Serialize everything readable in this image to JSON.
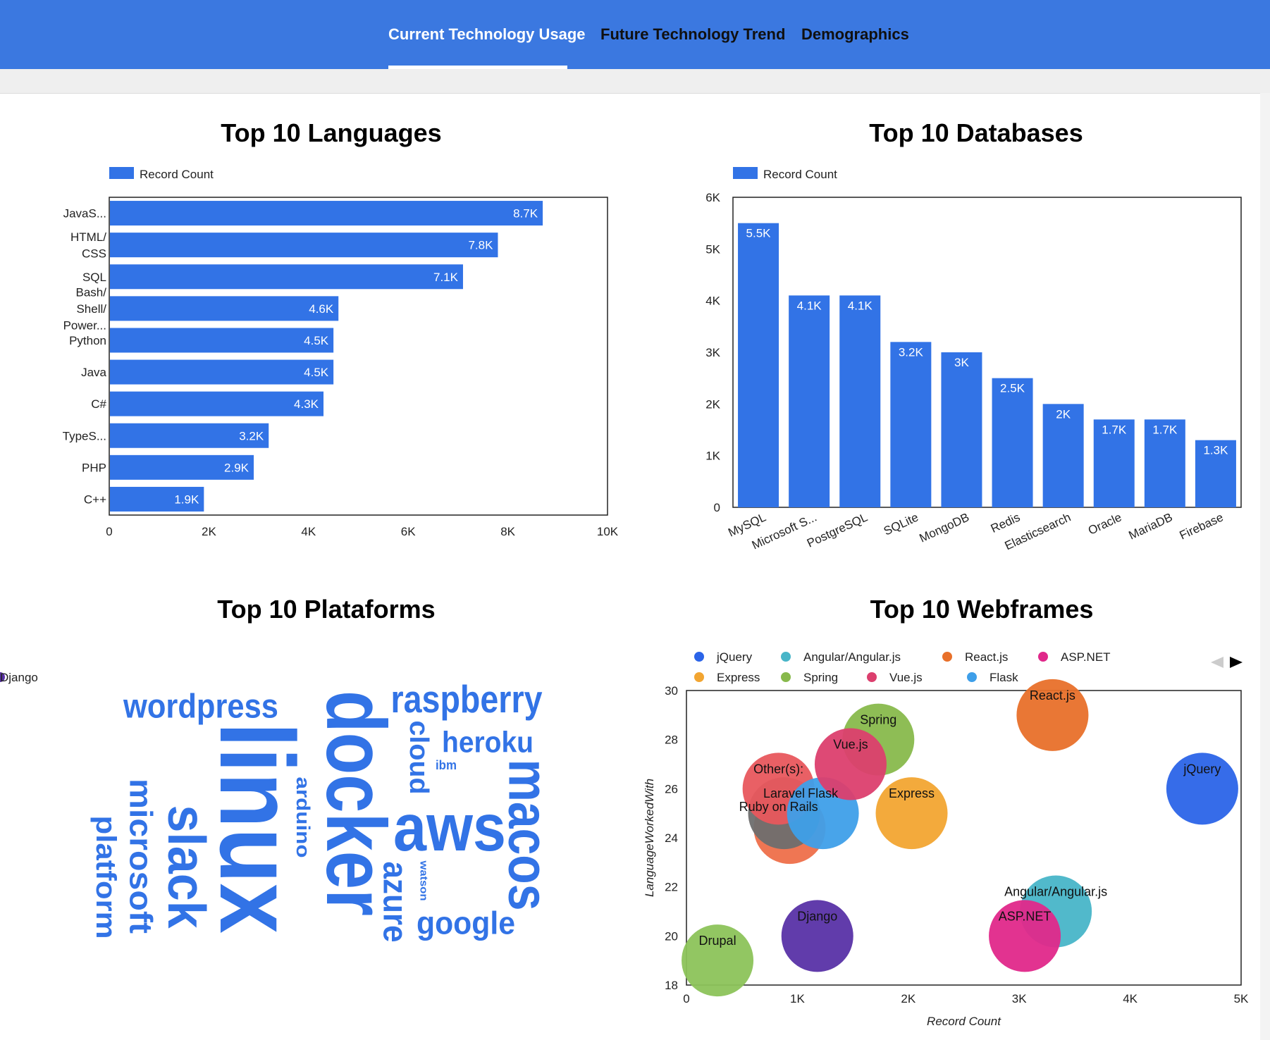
{
  "tabs": [
    {
      "label": "Current Technology Usage",
      "active": true
    },
    {
      "label": "Future Technology Trend",
      "active": false
    },
    {
      "label": "Demographics",
      "active": false
    }
  ],
  "colors": {
    "header": "#3b78e0",
    "bar": "#3273e6"
  },
  "panels": {
    "languages_title": "Top 10 Languages",
    "databases_title": "Top 10 Databases",
    "platforms_title": "Top 10 Plataforms",
    "webframes_title": "Top 10 Webframes"
  },
  "chart_data": [
    {
      "type": "bar",
      "orientation": "horizontal",
      "title": "Top 10 Languages",
      "legend": [
        "Record Count"
      ],
      "legend_position": "top-left",
      "categories": [
        [
          "JavaS..."
        ],
        [
          "HTML/",
          "CSS"
        ],
        [
          "SQL"
        ],
        [
          "Bash/",
          "Shell/",
          "Power..."
        ],
        [
          "Python"
        ],
        [
          "Java"
        ],
        [
          "C#"
        ],
        [
          "TypeS..."
        ],
        [
          "PHP"
        ],
        [
          "C++"
        ]
      ],
      "values": [
        8700,
        7800,
        7100,
        4600,
        4500,
        4500,
        4300,
        3200,
        2900,
        1900
      ],
      "data_labels": [
        "8.7K",
        "7.8K",
        "7.1K",
        "4.6K",
        "4.5K",
        "4.5K",
        "4.3K",
        "3.2K",
        "2.9K",
        "1.9K"
      ],
      "xlim": [
        0,
        10000
      ],
      "xticks": [
        0,
        2000,
        4000,
        6000,
        8000,
        10000
      ],
      "xtick_labels": [
        "0",
        "2K",
        "4K",
        "6K",
        "8K",
        "10K"
      ],
      "grid": false
    },
    {
      "type": "bar",
      "orientation": "vertical",
      "title": "Top 10 Databases",
      "legend": [
        "Record Count"
      ],
      "legend_position": "top-left",
      "categories": [
        "MySQL",
        "Microsoft S...",
        "PostgreSQL",
        "SQLite",
        "MongoDB",
        "Redis",
        "Elasticsearch",
        "Oracle",
        "MariaDB",
        "Firebase"
      ],
      "values": [
        5500,
        4100,
        4100,
        3200,
        3000,
        2500,
        2000,
        1700,
        1700,
        1300
      ],
      "data_labels": [
        "5.5K",
        "4.1K",
        "4.1K",
        "3.2K",
        "3K",
        "2.5K",
        "2K",
        "1.7K",
        "1.7K",
        "1.3K"
      ],
      "ylim": [
        0,
        6000
      ],
      "yticks": [
        0,
        1000,
        2000,
        3000,
        4000,
        5000,
        6000
      ],
      "ytick_labels": [
        "0",
        "1K",
        "2K",
        "3K",
        "4K",
        "5K",
        "6K"
      ],
      "grid": false
    },
    {
      "type": "wordcloud",
      "title": "Top 10 Plataforms",
      "words": [
        "linux",
        "docker",
        "aws",
        "macos",
        "slack",
        "raspberry",
        "wordpress",
        "heroku",
        "microsoft",
        "google",
        "azure",
        "platform",
        "cloud",
        "arduino",
        "ibm",
        "watson"
      ]
    },
    {
      "type": "scatter",
      "title": "Top 10 Webframes",
      "xlabel": "Record Count",
      "ylabel": "LanguageWorkedWith",
      "xlim": [
        0,
        5000
      ],
      "ylim": [
        18,
        30
      ],
      "xticks": [
        0,
        1000,
        2000,
        3000,
        4000,
        5000
      ],
      "xtick_labels": [
        "0",
        "1K",
        "2K",
        "3K",
        "4K",
        "5K"
      ],
      "yticks": [
        18,
        20,
        22,
        24,
        26,
        28,
        30
      ],
      "ytick_labels": [
        "18",
        "20",
        "22",
        "24",
        "26",
        "28",
        "30"
      ],
      "legend_position": "top",
      "legend": [
        {
          "name": "jQuery",
          "color": "#2b64e8"
        },
        {
          "name": "Angular/Angular.js",
          "color": "#48b5c8"
        },
        {
          "name": "React.js",
          "color": "#e8702a"
        },
        {
          "name": "ASP.NET",
          "color": "#e0288a"
        },
        {
          "name": "Express",
          "color": "#f2a531"
        },
        {
          "name": "Spring",
          "color": "#88b94c"
        },
        {
          "name": "Vue.js",
          "color": "#dc3f6e"
        },
        {
          "name": "Flask",
          "color": "#3e9fe9"
        },
        {
          "name": "Django",
          "color": "#5931a6"
        }
      ],
      "points": [
        {
          "label": "jQuery",
          "x": 4650,
          "y": 26,
          "color": "#2b64e8"
        },
        {
          "label": "Angular/Angular.js",
          "x": 3330,
          "y": 21,
          "color": "#48b5c8"
        },
        {
          "label": "React.js",
          "x": 3300,
          "y": 29,
          "color": "#e8702a"
        },
        {
          "label": "ASP.NET",
          "x": 3050,
          "y": 20,
          "color": "#e0288a"
        },
        {
          "label": "Express",
          "x": 2030,
          "y": 25,
          "color": "#f2a531"
        },
        {
          "label": "Spring",
          "x": 1730,
          "y": 28,
          "color": "#88b94c"
        },
        {
          "label": "Vue.js",
          "x": 1480,
          "y": 27,
          "color": "#dc3f6e"
        },
        {
          "label": "Flask",
          "x": 1230,
          "y": 25,
          "color": "#3e9fe9"
        },
        {
          "label": "Django",
          "x": 1180,
          "y": 20,
          "color": "#5931a6"
        },
        {
          "label": "",
          "x": 930,
          "y": 24.4,
          "color": "#ee6f4a"
        },
        {
          "label": "Laravel",
          "x": 880,
          "y": 25,
          "color": "#6e6e6e"
        },
        {
          "label": "Other(s):",
          "x": 830,
          "y": 26,
          "color": "#e8575d"
        },
        {
          "label": "Drupal",
          "x": 280,
          "y": 19,
          "color": "#8cc35a"
        }
      ],
      "extra_labels": [
        {
          "text": "Ruby on Rails",
          "x": 830,
          "y": 25.5
        }
      ]
    }
  ]
}
